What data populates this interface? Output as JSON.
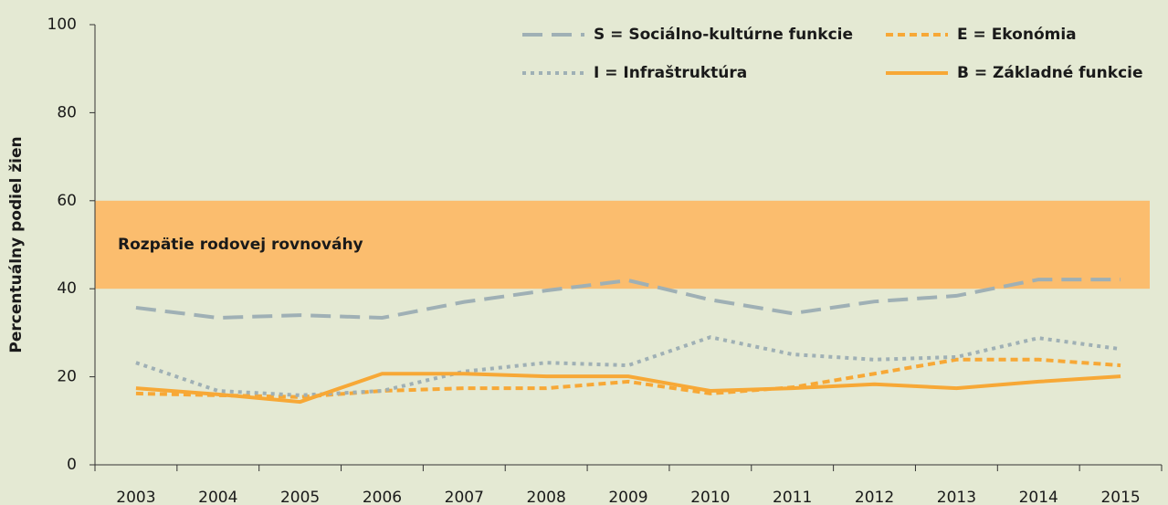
{
  "chart_data": {
    "type": "line",
    "y_label": "Percentuálny podiel žien",
    "categories": [
      "2003",
      "2004",
      "2005",
      "2006",
      "2007",
      "2008",
      "2009",
      "2010",
      "2011",
      "2012",
      "2013",
      "2014",
      "2015"
    ],
    "series": [
      {
        "name": "S = Sociálno-kultúrne funkcie",
        "color": "#9fb0b5",
        "dash": "dashed",
        "values": [
          35.7,
          33.4,
          34,
          33.4,
          37,
          39.6,
          41.9,
          37.5,
          34.4,
          37.1,
          38.4,
          42.1,
          42.1
        ]
      },
      {
        "name": "E = Ekonómia",
        "color": "#f7a836",
        "dash": "short-dashed",
        "values": [
          16.2,
          15.8,
          15.4,
          16.8,
          17.4,
          17.4,
          18.9,
          16.2,
          17.6,
          20.7,
          23.9,
          23.9,
          22.6
        ]
      },
      {
        "name": "I = Infraštruktúra",
        "color": "#9fb0b5",
        "dash": "dotted",
        "values": [
          23.2,
          16.8,
          15.8,
          16.8,
          21.2,
          23.2,
          22.6,
          29,
          25.1,
          23.9,
          24.5,
          28.8,
          26.3
        ]
      },
      {
        "name": "B = Základné funkcie",
        "color": "#f7a836",
        "dash": "solid",
        "values": [
          17.4,
          16,
          14.3,
          20.7,
          20.7,
          20.1,
          20.1,
          16.8,
          17.4,
          18.3,
          17.4,
          18.9,
          20.1
        ]
      }
    ],
    "band": {
      "range": [
        40,
        60
      ],
      "label": "Rozpätie rodovej rovnováhy",
      "color": "#fbbd6e"
    },
    "ylim": [
      0,
      100
    ],
    "yticks": [
      0,
      20,
      40,
      60,
      80,
      100
    ],
    "grid": false
  }
}
